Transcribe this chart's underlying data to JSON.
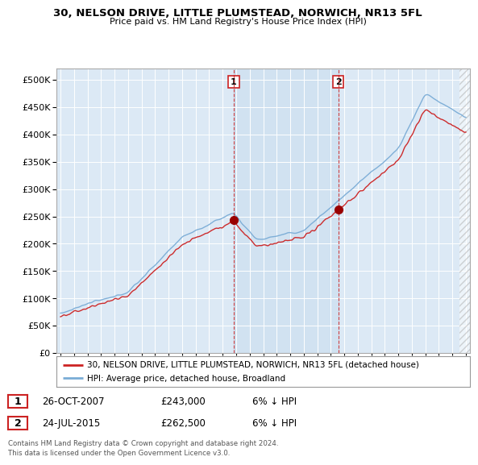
{
  "title": "30, NELSON DRIVE, LITTLE PLUMSTEAD, NORWICH, NR13 5FL",
  "subtitle": "Price paid vs. HM Land Registry's House Price Index (HPI)",
  "ytick_values": [
    0,
    50000,
    100000,
    150000,
    200000,
    250000,
    300000,
    350000,
    400000,
    450000,
    500000
  ],
  "ylim": [
    0,
    520000
  ],
  "xlim_start": 1994.7,
  "xlim_end": 2025.3,
  "background_color": "#dce9f5",
  "sale1_x": 2007.82,
  "sale1_y": 243000,
  "sale2_x": 2015.56,
  "sale2_y": 262500,
  "legend_line1": "30, NELSON DRIVE, LITTLE PLUMSTEAD, NORWICH, NR13 5FL (detached house)",
  "legend_line2": "HPI: Average price, detached house, Broadland",
  "table_row1": [
    "1",
    "26-OCT-2007",
    "£243,000",
    "6% ↓ HPI"
  ],
  "table_row2": [
    "2",
    "24-JUL-2015",
    "£262,500",
    "6% ↓ HPI"
  ],
  "footer": "Contains HM Land Registry data © Crown copyright and database right 2024.\nThis data is licensed under the Open Government Licence v3.0.",
  "hpi_color": "#7aacd6",
  "price_color": "#cc2222",
  "vline_color": "#cc2222",
  "marker_color": "#990000",
  "shade_color": "#cde0f0"
}
